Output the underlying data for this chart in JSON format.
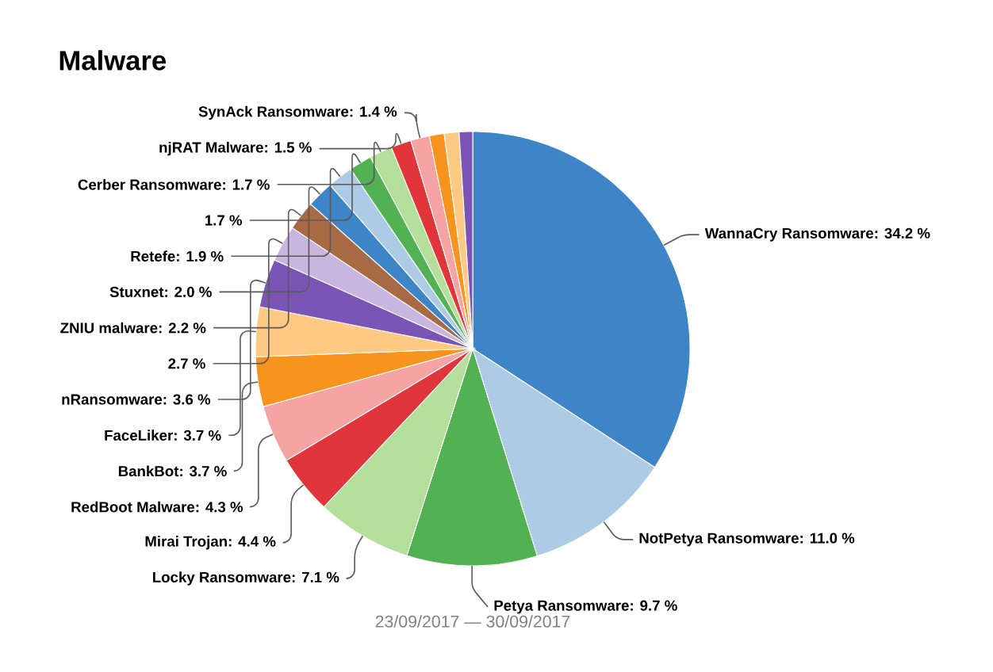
{
  "chart_data": {
    "type": "pie",
    "title": "Malware",
    "categories": [
      "WannaCry Ransomware",
      "NotPetya Ransomware",
      "Petya Ransomware",
      "Locky Ransomware",
      "Mirai Trojan",
      "RedBoot Malware",
      "BankBot",
      "FaceLiker",
      "nRansomware",
      null,
      "ZNIU malware",
      "Stuxnet",
      "Retefe",
      null,
      "Cerber Ransomware",
      "njRAT Malware",
      "SynAck Ransomware",
      null,
      null,
      null
    ],
    "values": [
      34.2,
      11.0,
      9.7,
      7.1,
      4.4,
      4.3,
      3.7,
      3.7,
      3.6,
      2.7,
      2.2,
      2.0,
      1.9,
      1.7,
      1.7,
      1.5,
      1.4,
      1.1,
      1.1,
      1.0
    ],
    "value_labels": [
      ": 34.2 %",
      ": 11.0 %",
      ": 9.7 %",
      ": 7.1 %",
      ": 4.4 %",
      ": 4.3 %",
      ": 3.7 %",
      ": 3.7 %",
      ": 3.6 %",
      "2.7 %",
      ": 2.2 %",
      ": 2.0 %",
      ": 1.9 %",
      "1.7 %",
      ": 1.7 %",
      ": 1.5 %",
      ": 1.4 %",
      null,
      null,
      null
    ],
    "colors": [
      "#3d85c6",
      "#aecbe6",
      "#52b152",
      "#b3df9a",
      "#e0353a",
      "#f5a3a3",
      "#f7941d",
      "#fdc983",
      "#7b55b5",
      "#c9b6de",
      "#a86a44",
      "#3d85c6",
      "#aecbe6",
      "#52b152",
      "#b3df9a",
      "#e0353a",
      "#f5a3a3",
      "#f7941d",
      "#fdc983",
      "#7b55b5"
    ],
    "annotations": [
      "23/09/2017 — 30/09/2017"
    ]
  }
}
